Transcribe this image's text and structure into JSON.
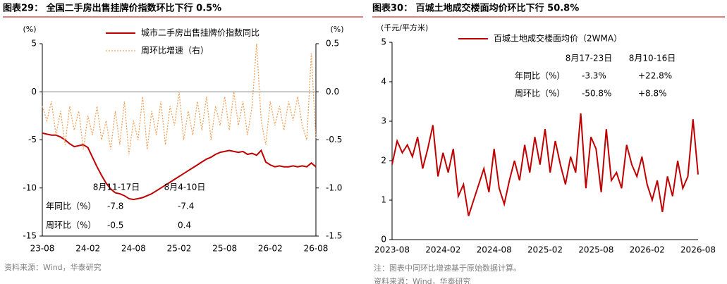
{
  "chart_data": [
    {
      "type": "line",
      "title": "图表29： 全国二手房出售挂牌价指数环比下行 0.5%",
      "y_unit": "(%)",
      "y2_unit": "(%)",
      "categories": [
        "23-08",
        null,
        null,
        null,
        null,
        null,
        null,
        null,
        null,
        null,
        "24-02",
        null,
        null,
        null,
        null,
        null,
        null,
        null,
        null,
        null,
        "24-08",
        null,
        null,
        null,
        null,
        null,
        null,
        null,
        null,
        null,
        "25-02",
        null,
        null,
        null,
        null,
        null,
        null,
        null,
        null,
        null,
        "25-08",
        null,
        null,
        null,
        null,
        null,
        null,
        null,
        null,
        null,
        "26-02",
        null,
        null,
        null,
        null,
        null,
        null,
        null,
        null,
        null,
        "26-08"
      ],
      "ylim": [
        -15,
        5
      ],
      "yticks": [
        -15,
        -10,
        -5,
        0,
        5
      ],
      "y2lim": [
        -1.5,
        0.5
      ],
      "y2ticks": [
        -1.5,
        {
          "value": -1.0,
          "label": "-1.0"
        },
        -0.5,
        {
          "value": 0.0,
          "label": "0.0"
        },
        0.5
      ],
      "series": [
        {
          "name": "城市二手房出售挂牌价指数同比",
          "color": "#c00000",
          "style": "solid",
          "values": [
            -4.3,
            -4.4,
            -4.5,
            -4.5,
            -4.7,
            -5.0,
            -5.4,
            -5.7,
            -5.6,
            -5.5,
            -5.8,
            -6.8,
            -7.8,
            -8.7,
            -9.5,
            -10.1,
            -10.5,
            -10.6,
            -10.8,
            -11.1,
            -11.2,
            -11.1,
            -11.0,
            -10.8,
            -10.6,
            -10.3,
            -10.0,
            -9.7,
            -9.4,
            -9.1,
            -8.8,
            -8.5,
            -8.2,
            -7.9,
            -7.6,
            -7.3,
            -7.0,
            -6.8,
            -6.5,
            -6.3,
            -6.2,
            -6.1,
            -6.2,
            -6.3,
            -6.2,
            -6.5,
            -6.4,
            -6.6,
            -6.1,
            -7.3,
            -7.6,
            -7.8,
            -7.7,
            -7.8,
            -7.8,
            -7.7,
            -7.8,
            -7.7,
            -7.8,
            -7.4,
            -7.8
          ]
        },
        {
          "name": "周环比增速（右）",
          "color": "#f0a05a",
          "style": "dotted",
          "axis": "y2",
          "values": [
            -0.15,
            -0.3,
            -0.1,
            -0.45,
            -0.2,
            -0.55,
            -0.15,
            -0.4,
            -0.2,
            -0.6,
            -0.25,
            -0.45,
            -0.15,
            -0.5,
            -0.3,
            -0.6,
            -0.2,
            -0.55,
            -0.1,
            -0.65,
            -0.3,
            -0.5,
            -0.05,
            -0.6,
            -0.2,
            -0.45,
            -0.1,
            -0.55,
            -0.15,
            -0.35,
            0.0,
            -0.5,
            -0.2,
            -0.45,
            -0.1,
            -0.4,
            -0.05,
            -0.5,
            -0.15,
            -0.35,
            -0.05,
            -0.4,
            0.0,
            -0.35,
            -0.1,
            -0.45,
            -0.15,
            0.5,
            -0.3,
            -0.55,
            -0.1,
            -0.35,
            -0.15,
            -0.4,
            -0.1,
            -0.3,
            -0.05,
            -0.35,
            -0.5,
            0.4,
            -0.5
          ]
        }
      ],
      "annotation_table": {
        "columns": [
          "8月11-17日",
          "8月4-10日"
        ],
        "rows": [
          {
            "label": "年同比（%）",
            "values": [
              "-7.8",
              "-7.4"
            ]
          },
          {
            "label": "周环比（%）",
            "values": [
              "-0.5",
              "0.4"
            ]
          }
        ]
      },
      "notes": [
        "资料来源：Wind，华泰研究"
      ]
    },
    {
      "type": "line",
      "title": "图表30： 百城土地成交楼面均价环比下行 50.8%",
      "y_unit": "(千元/平方米)",
      "categories": [
        "2023-08",
        null,
        null,
        null,
        null,
        null,
        null,
        null,
        null,
        null,
        "2024-02",
        null,
        null,
        null,
        null,
        null,
        null,
        null,
        null,
        null,
        "2024-08",
        null,
        null,
        null,
        null,
        null,
        null,
        null,
        null,
        null,
        "2025-02",
        null,
        null,
        null,
        null,
        null,
        null,
        null,
        null,
        null,
        "2025-08",
        null,
        null,
        null,
        null,
        null,
        null,
        null,
        null,
        null,
        "2026-02",
        null,
        null,
        null,
        null,
        null,
        null,
        null,
        null,
        null,
        "2026-08"
      ],
      "ylim": [
        0,
        5
      ],
      "yticks": [
        0,
        1,
        2,
        3,
        4,
        5
      ],
      "series": [
        {
          "name": "百城土地成交楼面均价（2WMA）",
          "color": "#c00000",
          "style": "solid",
          "values": [
            1.9,
            2.5,
            2.2,
            2.4,
            2.1,
            2.6,
            1.8,
            2.3,
            2.9,
            1.6,
            2.2,
            1.7,
            2.3,
            1.1,
            1.4,
            0.6,
            1.0,
            1.4,
            1.8,
            1.2,
            2.3,
            1.3,
            0.9,
            1.5,
            2.0,
            1.5,
            2.4,
            1.7,
            2.6,
            1.9,
            2.8,
            1.7,
            2.5,
            1.9,
            1.4,
            2.1,
            1.7,
            3.2,
            1.3,
            2.6,
            2.3,
            1.2,
            2.8,
            1.5,
            1.7,
            1.3,
            2.4,
            1.9,
            1.6,
            2.1,
            1.4,
            1.0,
            1.5,
            0.7,
            1.6,
            1.1,
            2.0,
            1.3,
            1.6,
            3.05,
            1.65
          ]
        }
      ],
      "annotation_table": {
        "columns": [
          "8月17-23日",
          "8月10-16日"
        ],
        "rows": [
          {
            "label": "年同比（%）",
            "values": [
              "-3.3%",
              "+22.8%"
            ]
          },
          {
            "label": "周环比（%）",
            "values": [
              "-50.8%",
              "+8.8%"
            ]
          }
        ]
      },
      "notes": [
        "注：图表中同环比增速基于原始数据计算。",
        "资料来源：Wind，华泰研究"
      ]
    }
  ]
}
